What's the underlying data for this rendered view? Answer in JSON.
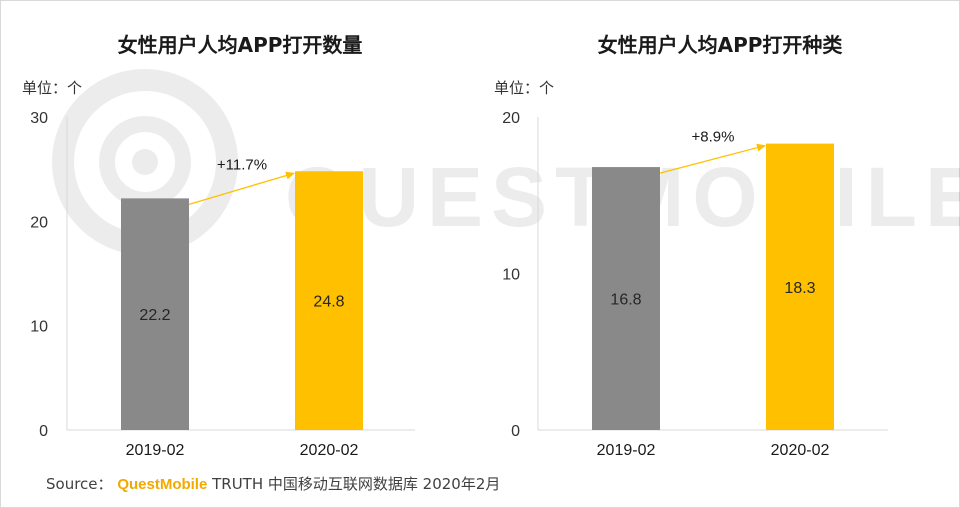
{
  "watermark": "QUESTMOBILE",
  "source": {
    "label": "Source：",
    "brand": "QuestMobile",
    "detail": "TRUTH 中国移动互联网数据库 2020年2月"
  },
  "colors": {
    "bar_2019": "#898989",
    "bar_2020": "#ffc000",
    "arrow": "#ffc000",
    "axis": "#d9d9d9"
  },
  "chart_data": [
    {
      "type": "bar",
      "title": "女性用户人均APP打开数量",
      "unit_label": "单位：个",
      "categories": [
        "2019-02",
        "2020-02"
      ],
      "values": [
        22.2,
        24.8
      ],
      "value_labels": [
        "22.2",
        "24.8"
      ],
      "ylim": [
        0,
        30
      ],
      "yticks": [
        0,
        10,
        20,
        30
      ],
      "growth_label": "+11.7%",
      "xlabel": "",
      "ylabel": "",
      "grid": false
    },
    {
      "type": "bar",
      "title": "女性用户人均APP打开种类",
      "unit_label": "单位：个",
      "categories": [
        "2019-02",
        "2020-02"
      ],
      "values": [
        16.8,
        18.3
      ],
      "value_labels": [
        "16.8",
        "18.3"
      ],
      "ylim": [
        0,
        20
      ],
      "yticks": [
        0,
        10,
        20
      ],
      "growth_label": "+8.9%",
      "xlabel": "",
      "ylabel": "",
      "grid": false
    }
  ]
}
